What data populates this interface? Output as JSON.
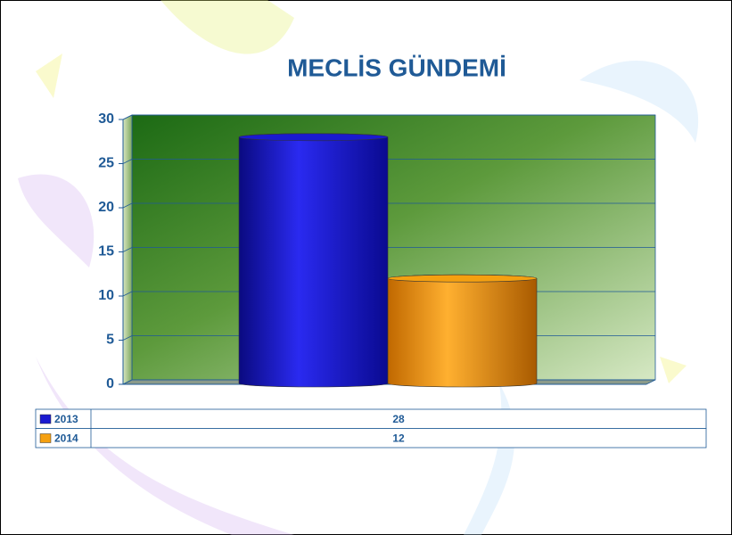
{
  "chart_data": {
    "type": "bar3d",
    "title": "MECLİS GÜNDEMİ",
    "categories": [
      null
    ],
    "series": [
      {
        "name": "2013",
        "color": "#1a1ad0",
        "values": [
          28
        ]
      },
      {
        "name": "2014",
        "color": "#f5a010",
        "values": [
          12
        ]
      }
    ],
    "ylim": [
      0,
      30
    ],
    "yticks": [
      0,
      5,
      10,
      15,
      20,
      25,
      30
    ],
    "grid": true,
    "data_table": true
  }
}
